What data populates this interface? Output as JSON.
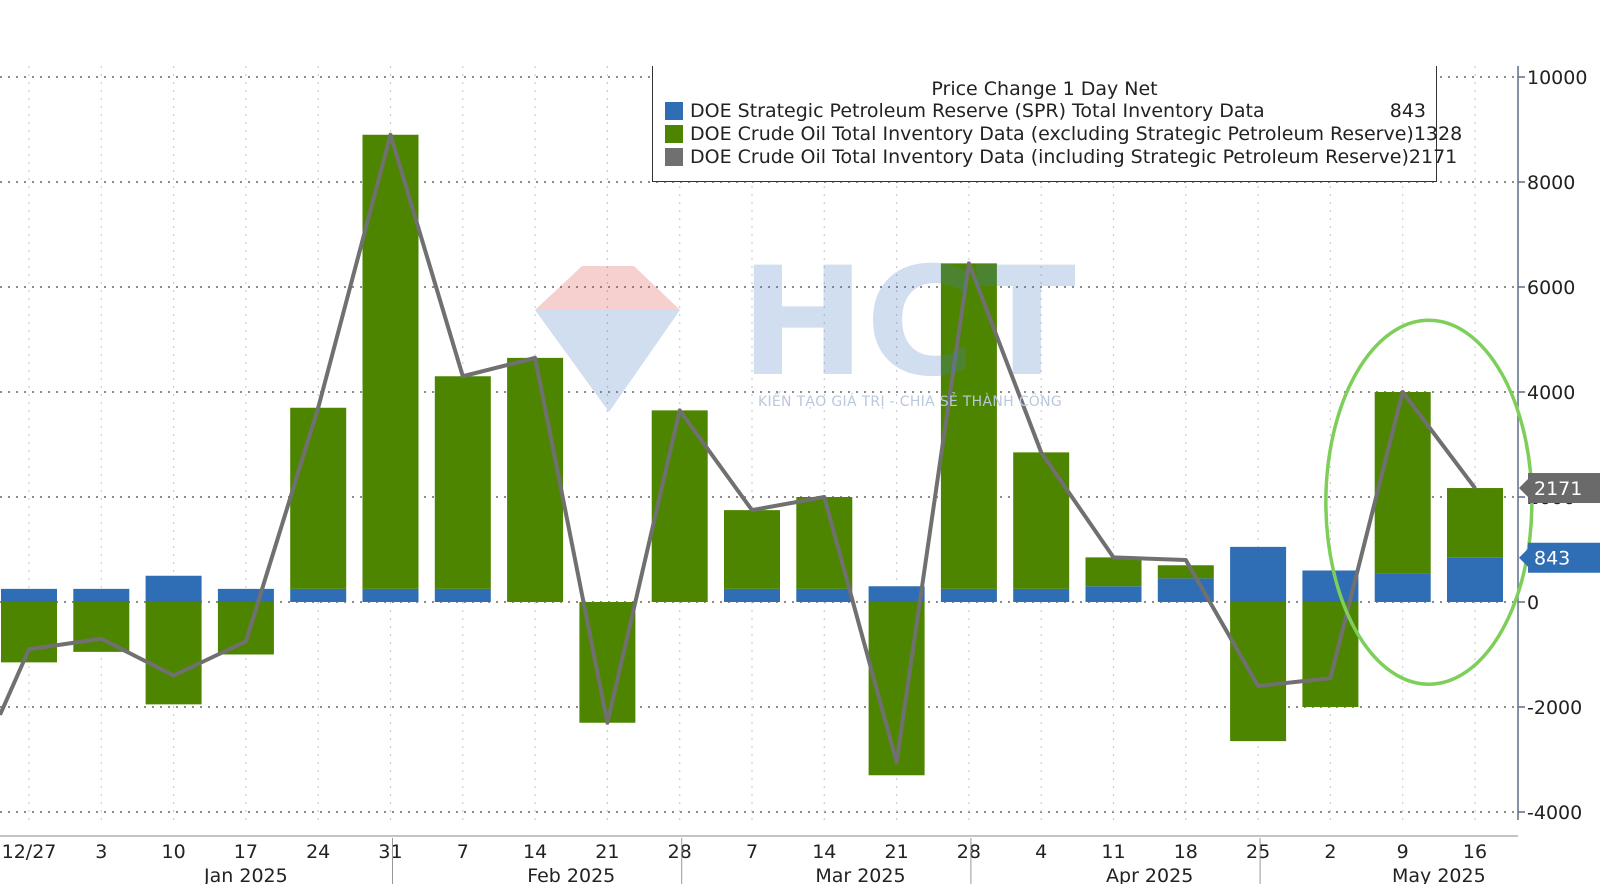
{
  "chart_data": {
    "type": "bar",
    "title": "",
    "legend_title": "Price Change 1 Day Net",
    "legend_position": "top-center",
    "grid": true,
    "ylim": [
      -4000,
      10000
    ],
    "y_ticks": [
      -4000,
      -2000,
      0,
      2000,
      4000,
      6000,
      8000,
      10000
    ],
    "y_tick_labels": [
      "-4000",
      "-2000",
      "0",
      "2000",
      "4000",
      "6000",
      "8000",
      "10000"
    ],
    "x_tick_labels": [
      "12/27",
      "3",
      "10",
      "17",
      "24",
      "31",
      "7",
      "14",
      "21",
      "28",
      "7",
      "14",
      "21",
      "28",
      "4",
      "11",
      "18",
      "25",
      "2",
      "9",
      "16"
    ],
    "month_labels": [
      {
        "label": "Jan 2025",
        "index": 3
      },
      {
        "label": "Feb 2025",
        "index": 7.5
      },
      {
        "label": "Mar 2025",
        "index": 11.5
      },
      {
        "label": "Apr 2025",
        "index": 15.5
      },
      {
        "label": "May 2025",
        "index": 19.5
      }
    ],
    "month_separators": [
      5,
      9,
      13,
      17
    ],
    "series": [
      {
        "name": "DOE Strategic Petroleum Reserve (SPR) Total Inventory Data",
        "legend_value": "843",
        "color": "#2f6eb5",
        "values": [
          250,
          250,
          500,
          250,
          250,
          250,
          250,
          0,
          0,
          0,
          250,
          250,
          300,
          250,
          250,
          300,
          450,
          1050,
          600,
          550,
          843
        ]
      },
      {
        "name": "DOE Crude Oil Total Inventory Data (excluding Strategic Petroleum Reserve)",
        "legend_value": "1328",
        "color": "#4e8500",
        "values": [
          -1150,
          -950,
          -1950,
          -1000,
          3450,
          8650,
          4050,
          4650,
          -2300,
          3650,
          1500,
          1750,
          -3300,
          6200,
          2600,
          550,
          250,
          -2650,
          -2000,
          3450,
          1328
        ]
      },
      {
        "name": "DOE Crude Oil Total Inventory Data (including Strategic Petroleum Reserve)",
        "legend_value": "2171",
        "color": "#707070",
        "values": [
          -900,
          -700,
          -1400,
          -750,
          3700,
          8900,
          4300,
          4650,
          -2300,
          3650,
          1750,
          2000,
          -3050,
          6450,
          2850,
          850,
          800,
          -1600,
          -1450,
          4000,
          2171
        ]
      }
    ],
    "line_start_value": -2150,
    "callouts": [
      {
        "value": 2171,
        "label": "2171",
        "color": "#6a6a6a"
      },
      {
        "value": 843,
        "label": "843",
        "color": "#2f6eb5"
      }
    ],
    "highlight_ellipse_color": "#7dcf5a"
  },
  "watermark": {
    "text": "HCT",
    "tagline": "KIẾN TẠO GIÁ TRỊ - CHIA SẺ THÀNH CÔNG"
  }
}
